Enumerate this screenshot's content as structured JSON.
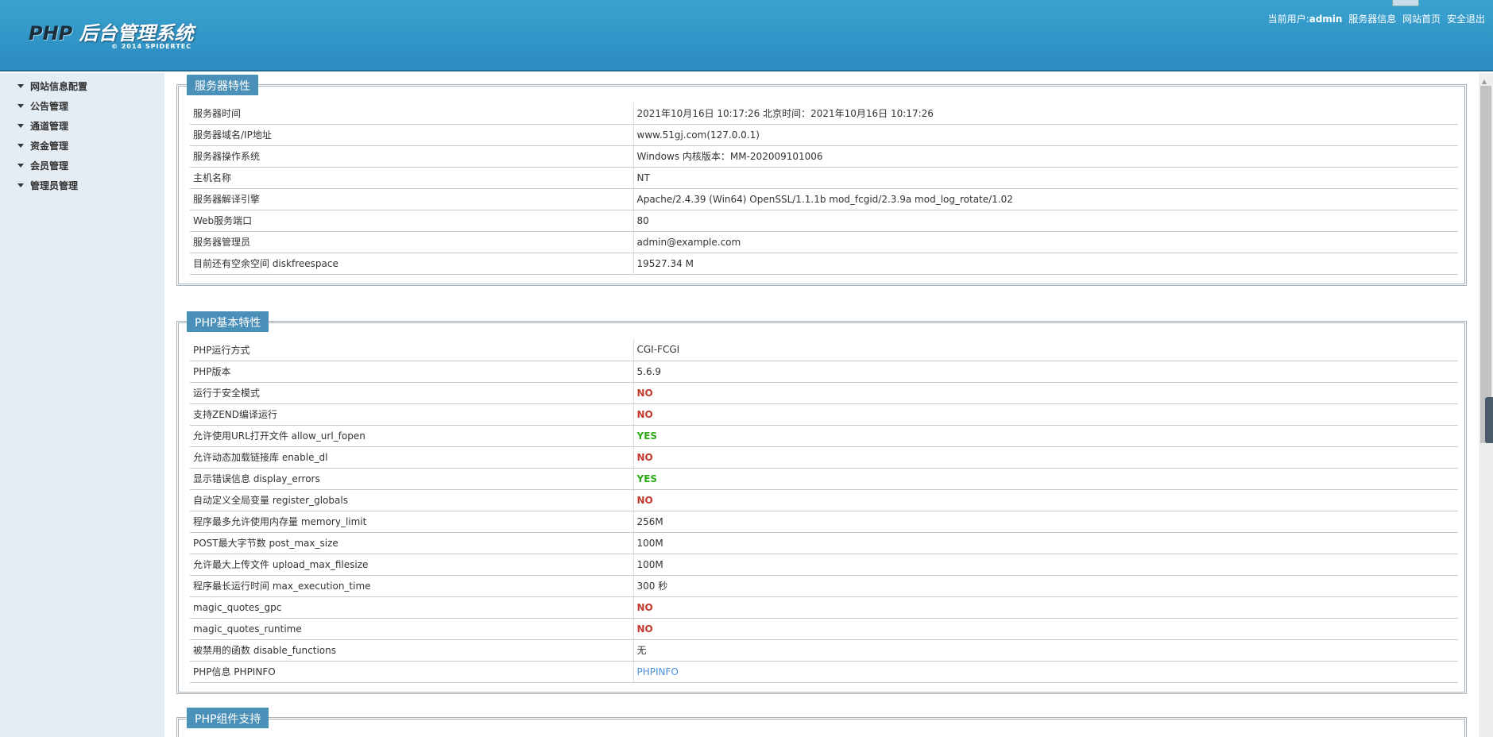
{
  "header": {
    "title_php": "PHP",
    "title_rest": " 后台管理系统",
    "subtitle": "© 2014   SPIDERTEC",
    "user_label": "当前用户:",
    "user": "admin",
    "links": [
      "服务器信息",
      "网站首页",
      "安全退出"
    ]
  },
  "sidebar": {
    "items": [
      "网站信息配置",
      "公告管理",
      "通道管理",
      "资金管理",
      "会员管理",
      "管理员管理"
    ]
  },
  "sections": [
    {
      "title": "服务器特性",
      "rows": [
        [
          "服务器时间",
          "2021年10月16日 10:17:26 北京时间：2021年10月16日 10:17:26",
          ""
        ],
        [
          "服务器域名/IP地址",
          "www.51gj.com(127.0.0.1)",
          ""
        ],
        [
          "服务器操作系统",
          "Windows 内核版本：MM-202009101006",
          ""
        ],
        [
          "主机名称",
          "NT",
          ""
        ],
        [
          "服务器解译引擎",
          "Apache/2.4.39 (Win64) OpenSSL/1.1.1b mod_fcgid/2.3.9a mod_log_rotate/1.02",
          ""
        ],
        [
          "Web服务端口",
          "80",
          ""
        ],
        [
          "服务器管理员",
          "admin@example.com",
          ""
        ],
        [
          "目前还有空余空间 diskfreespace",
          "19527.34 M",
          ""
        ]
      ]
    },
    {
      "title": "PHP基本特性",
      "rows": [
        [
          "PHP运行方式",
          "CGI-FCGI",
          ""
        ],
        [
          "PHP版本",
          "5.6.9",
          ""
        ],
        [
          "运行于安全模式",
          "NO",
          "no"
        ],
        [
          "支持ZEND编译运行",
          "NO",
          "no"
        ],
        [
          "允许使用URL打开文件 allow_url_fopen",
          "YES",
          "yes"
        ],
        [
          "允许动态加载链接库 enable_dl",
          "NO",
          "no"
        ],
        [
          "显示错误信息 display_errors",
          "YES",
          "yes"
        ],
        [
          "自动定义全局变量 register_globals",
          "NO",
          "no"
        ],
        [
          "程序最多允许使用内存量 memory_limit",
          "256M",
          ""
        ],
        [
          "POST最大字节数 post_max_size",
          "100M",
          ""
        ],
        [
          "允许最大上传文件 upload_max_filesize",
          "100M",
          ""
        ],
        [
          "程序最长运行时间 max_execution_time",
          "300 秒",
          ""
        ],
        [
          "magic_quotes_gpc",
          "NO",
          "no"
        ],
        [
          "magic_quotes_runtime",
          "NO",
          "no"
        ],
        [
          "被禁用的函数 disable_functions",
          "无",
          ""
        ],
        [
          "PHP信息 PHPINFO",
          "PHPINFO",
          "link"
        ]
      ]
    },
    {
      "title": "PHP组件支持",
      "rows": []
    }
  ],
  "colors": {
    "header": "#2b8cc0",
    "legend": "#4a90b8",
    "no": "#c0392b",
    "yes": "#2eaa17",
    "link": "#4a8fdc"
  }
}
